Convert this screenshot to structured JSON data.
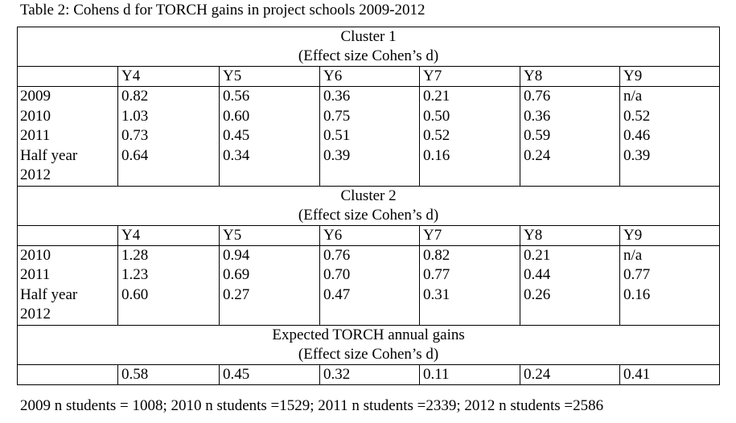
{
  "caption": "Table 2: Cohens d for TORCH gains in project schools 2009-2012",
  "columns": [
    "Y4",
    "Y5",
    "Y6",
    "Y7",
    "Y8",
    "Y9"
  ],
  "cluster1": {
    "title": "Cluster 1",
    "subtitle": "(Effect size Cohen’s d)",
    "rows": [
      {
        "label": "2009",
        "values": [
          "0.82",
          "0.56",
          "0.36",
          "0.21",
          "0.76",
          "n/a"
        ]
      },
      {
        "label": "2010",
        "values": [
          "1.03",
          "0.60",
          "0.75",
          "0.50",
          "0.36",
          "0.52"
        ]
      },
      {
        "label": "2011",
        "values": [
          "0.73",
          "0.45",
          "0.51",
          "0.52",
          "0.59",
          "0.46"
        ]
      },
      {
        "label": "Half year",
        "label2": "2012",
        "values": [
          "0.64",
          "0.34",
          "0.39",
          "0.16",
          "0.24",
          "0.39"
        ]
      }
    ]
  },
  "cluster2": {
    "title": "Cluster 2",
    "subtitle": "(Effect size Cohen’s d)",
    "rows": [
      {
        "label": "2010",
        "values": [
          "1.28",
          "0.94",
          "0.76",
          "0.82",
          "0.21",
          "n/a"
        ]
      },
      {
        "label": "2011",
        "values": [
          "1.23",
          "0.69",
          "0.70",
          "0.77",
          "0.44",
          "0.77"
        ]
      },
      {
        "label": "Half year",
        "label2": "2012",
        "values": [
          "0.60",
          "0.27",
          "0.47",
          "0.31",
          "0.26",
          "0.16"
        ]
      }
    ]
  },
  "expected": {
    "title": "Expected TORCH annual gains",
    "subtitle": "(Effect size Cohen’s d)",
    "values": [
      "0.58",
      "0.45",
      "0.32",
      "0.11",
      "0.24",
      "0.41"
    ]
  },
  "footer": "2009 n students = 1008; 2010 n students =1529; 2011 n students =2339; 2012 n students =2586"
}
